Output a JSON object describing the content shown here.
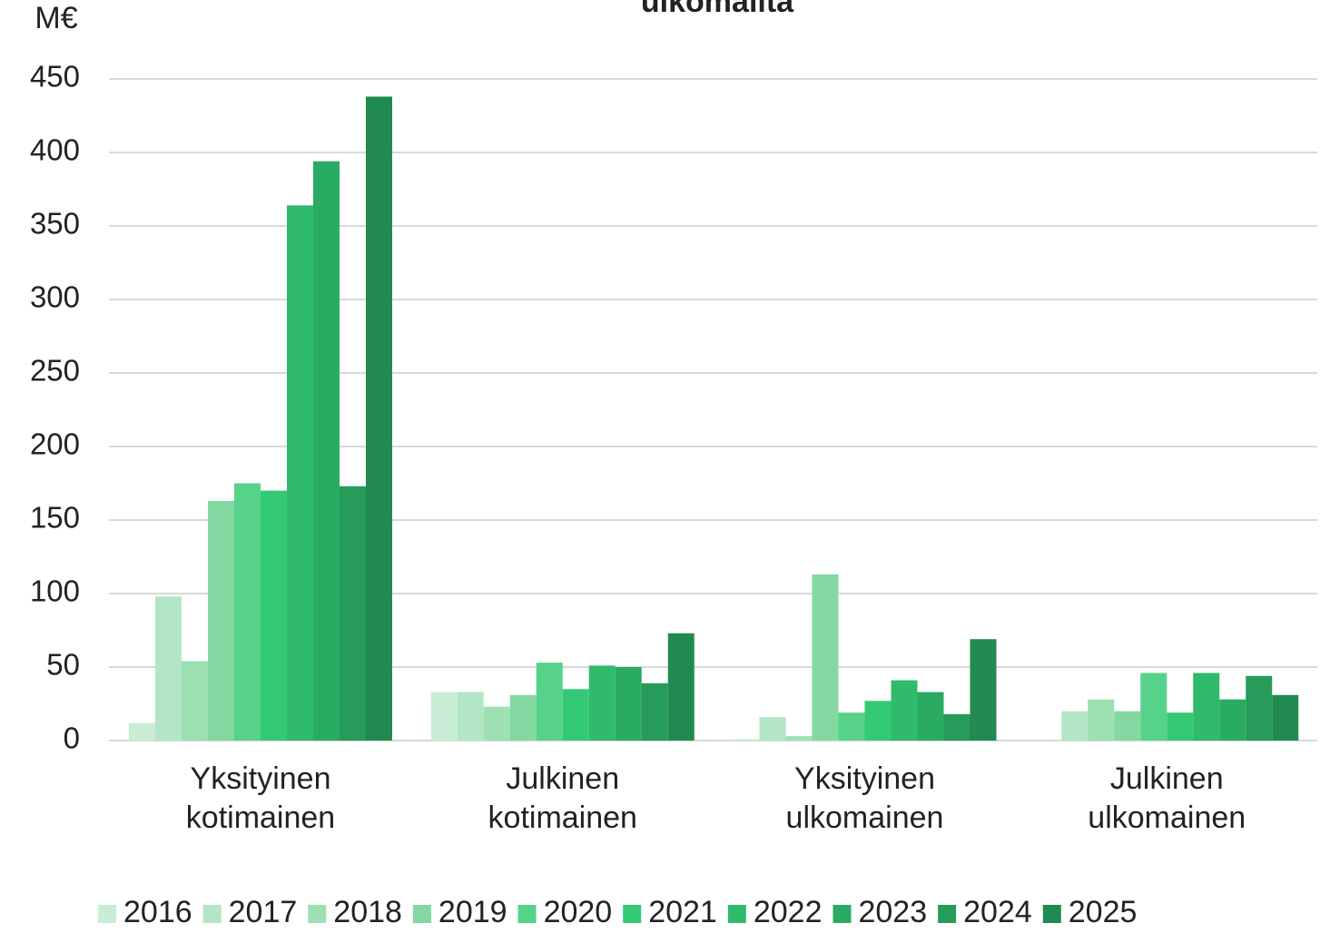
{
  "chart_data": {
    "type": "bar",
    "title": "ulkomailta",
    "y_label": "M€",
    "categories": [
      "Yksityinen kotimainen",
      "Julkinen kotimainen",
      "Yksityinen ulkomainen",
      "Julkinen ulkomainen"
    ],
    "series": [
      {
        "name": "2016",
        "color": "#c8ecd4",
        "values": [
          12,
          33,
          1,
          0
        ]
      },
      {
        "name": "2017",
        "color": "#b3e6c4",
        "values": [
          98,
          33,
          16,
          20
        ]
      },
      {
        "name": "2018",
        "color": "#9de0b2",
        "values": [
          54,
          23,
          3,
          28
        ]
      },
      {
        "name": "2019",
        "color": "#82d8a0",
        "values": [
          163,
          31,
          113,
          20
        ]
      },
      {
        "name": "2020",
        "color": "#57d28a",
        "values": [
          175,
          53,
          19,
          46
        ]
      },
      {
        "name": "2021",
        "color": "#34c974",
        "values": [
          170,
          35,
          27,
          19
        ]
      },
      {
        "name": "2022",
        "color": "#2fba6c",
        "values": [
          364,
          51,
          41,
          46
        ]
      },
      {
        "name": "2023",
        "color": "#2aab63",
        "values": [
          394,
          50,
          33,
          28
        ]
      },
      {
        "name": "2024",
        "color": "#269b5a",
        "values": [
          173,
          39,
          18,
          44
        ]
      },
      {
        "name": "2025",
        "color": "#218a50",
        "values": [
          438,
          73,
          69,
          31
        ]
      }
    ],
    "ylim": [
      0,
      450
    ],
    "yticks": [
      0,
      50,
      100,
      150,
      200,
      250,
      300,
      350,
      400,
      450
    ],
    "grid": true
  }
}
